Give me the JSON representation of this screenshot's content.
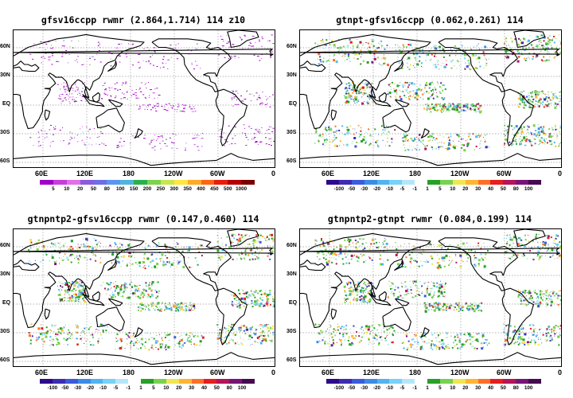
{
  "map": {
    "lat_labels": [
      "60N",
      "30N",
      "EQ",
      "30S",
      "60S"
    ],
    "lon_labels": [
      "60E",
      "120E",
      "180",
      "120W",
      "60W",
      "0"
    ]
  },
  "panels": [
    {
      "id": "p1",
      "title": "gfsv16ccpp rwmr (2.864,1.714) 114 z10",
      "scale": "absolute",
      "colorbar": {
        "labels": [
          "5",
          "10",
          "20",
          "50",
          "80",
          "100",
          "150",
          "200",
          "250",
          "300",
          "350",
          "400",
          "450",
          "500",
          "1000"
        ],
        "colors": [
          "#a000c8",
          "#c83cdc",
          "#e070e8",
          "#8c5adc",
          "#6e6ee6",
          "#5a96f0",
          "#50b4dc",
          "#2ab04a",
          "#7ed24e",
          "#c8e650",
          "#ffe640",
          "#ffaa28",
          "#ff6414",
          "#e81e0a",
          "#b40000",
          "#780000"
        ]
      }
    },
    {
      "id": "p2",
      "title": "gtnpt-gfsv16ccpp (0.062,0.261) 114",
      "scale": "difference",
      "colorbar": {
        "labels": [
          "-100",
          "-50",
          "-30",
          "-20",
          "-10",
          "-5",
          "-1",
          "1",
          "5",
          "10",
          "20",
          "30",
          "40",
          "50",
          "80",
          "100"
        ],
        "colors": [
          "#2d0a8c",
          "#3c2cb4",
          "#3c5adc",
          "#3c8ce6",
          "#50b4f0",
          "#78d2f8",
          "#b4e6fa",
          "#ffffff",
          "#28a028",
          "#78d250",
          "#f0e650",
          "#ffb432",
          "#ff6e28",
          "#e61e1e",
          "#b4145a",
          "#781478",
          "#460a50"
        ]
      }
    },
    {
      "id": "p3",
      "title": "gtnpntp2-gfsv16ccpp rwmr (0.147,0.460) 114",
      "scale": "difference",
      "colorbar": {
        "labels": [
          "-100",
          "-50",
          "-30",
          "-20",
          "-10",
          "-5",
          "-1",
          "1",
          "5",
          "10",
          "20",
          "30",
          "40",
          "50",
          "80",
          "100"
        ],
        "colors": [
          "#2d0a8c",
          "#3c2cb4",
          "#3c5adc",
          "#3c8ce6",
          "#50b4f0",
          "#78d2f8",
          "#b4e6fa",
          "#ffffff",
          "#28a028",
          "#78d250",
          "#f0e650",
          "#ffb432",
          "#ff6e28",
          "#e61e1e",
          "#b4145a",
          "#781478",
          "#460a50"
        ]
      }
    },
    {
      "id": "p4",
      "title": "gtnpntp2-gtnpt rwmr (0.084,0.199) 114",
      "scale": "difference",
      "colorbar": {
        "labels": [
          "-100",
          "-50",
          "-30",
          "-20",
          "-10",
          "-5",
          "-1",
          "1",
          "5",
          "10",
          "20",
          "30",
          "40",
          "50",
          "80",
          "100"
        ],
        "colors": [
          "#2d0a8c",
          "#3c2cb4",
          "#3c5adc",
          "#3c8ce6",
          "#50b4f0",
          "#78d2f8",
          "#b4e6fa",
          "#ffffff",
          "#28a028",
          "#78d250",
          "#f0e650",
          "#ffb432",
          "#ff6e28",
          "#e61e1e",
          "#b4145a",
          "#781478",
          "#460a50"
        ]
      }
    }
  ]
}
